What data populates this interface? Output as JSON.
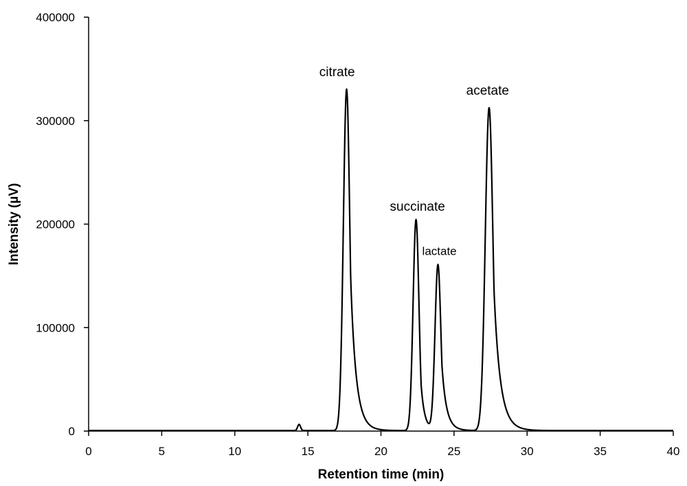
{
  "chart_data": {
    "type": "line",
    "title": "",
    "xlabel": "Retention time (min)",
    "ylabel": "Intensity (µV)",
    "xlim": [
      0,
      40
    ],
    "ylim": [
      0,
      400000
    ],
    "x_ticks": [
      0,
      5,
      10,
      15,
      20,
      25,
      30,
      35,
      40
    ],
    "y_ticks": [
      0,
      100000,
      200000,
      300000,
      400000
    ],
    "grid": false,
    "legend": "none",
    "line_color": "#000000",
    "baseline": 500,
    "peaks": [
      {
        "name": "",
        "rt": 14.4,
        "height": 6000,
        "width_left": 0.1,
        "tail": 0.08
      },
      {
        "name": "citrate",
        "rt": 17.65,
        "height": 330000,
        "width_left": 0.22,
        "tail": 0.5
      },
      {
        "name": "succinate",
        "rt": 22.4,
        "height": 204000,
        "width_left": 0.2,
        "tail": 0.32
      },
      {
        "name": "lactate",
        "rt": 23.9,
        "height": 160000,
        "width_left": 0.2,
        "tail": 0.42
      },
      {
        "name": "acetate",
        "rt": 27.4,
        "height": 312000,
        "width_left": 0.26,
        "tail": 0.58
      }
    ],
    "annotations": [
      {
        "text": "citrate",
        "x": 17.0,
        "y": 343000
      },
      {
        "text": "succinate",
        "x": 22.5,
        "y": 213000
      },
      {
        "text": "lactate",
        "x": 24.0,
        "y": 170000
      },
      {
        "text": "acetate",
        "x": 27.3,
        "y": 325000
      }
    ]
  }
}
